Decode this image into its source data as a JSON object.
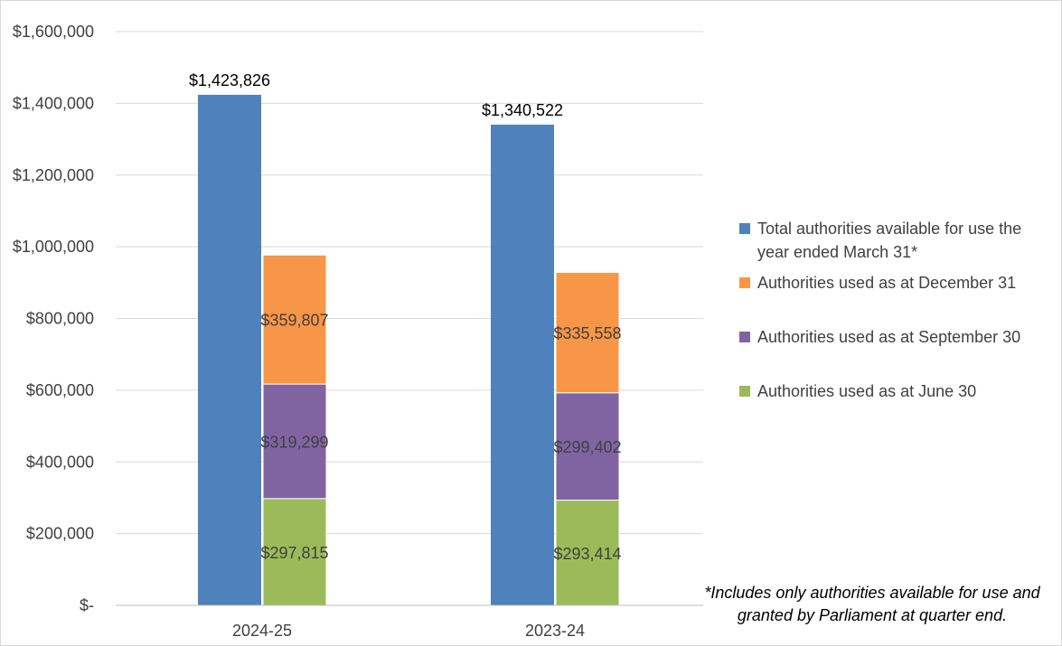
{
  "chart_data": {
    "type": "bar",
    "layout": "grouped-stacked",
    "categories": [
      "2024-25",
      "2023-24"
    ],
    "ylim": [
      0,
      1600000
    ],
    "yticks": [
      0,
      200000,
      400000,
      600000,
      800000,
      1000000,
      1200000,
      1400000,
      1600000
    ],
    "ytick_labels": [
      "$-",
      "$200,000",
      "$400,000",
      "$600,000",
      "$800,000",
      "$1,000,000",
      "$1,200,000",
      "$1,400,000",
      "$1,600,000"
    ],
    "grid": true,
    "legend_position": "right",
    "total_series": {
      "name": "Total authorities available for use the year ended March 31*",
      "color": "#4f81bd",
      "values": [
        1423826,
        1340522
      ],
      "labels": [
        "$1,423,826",
        "$1,340,522"
      ]
    },
    "stacked_series": [
      {
        "name": "Authorities used as at June 30",
        "color": "#9bbb59",
        "values": [
          297815,
          293414
        ],
        "labels": [
          "$297,815",
          "$293,414"
        ]
      },
      {
        "name": "Authorities used as at September 30",
        "color": "#8064a2",
        "values": [
          319299,
          299402
        ],
        "labels": [
          "$319,299",
          "$299,402"
        ]
      },
      {
        "name": "Authorities used as at December 31",
        "color": "#f79646",
        "values": [
          359807,
          335558
        ],
        "labels": [
          "$359,807",
          "$335,558"
        ]
      }
    ],
    "legend": [
      {
        "name": "Total authorities available for use the year ended March 31*",
        "color": "#4f81bd"
      },
      {
        "name": "Authorities used as at December 31",
        "color": "#f79646"
      },
      {
        "name": "Authorities used as at September 30",
        "color": "#8064a2"
      },
      {
        "name": "Authorities used as at June 30",
        "color": "#9bbb59"
      }
    ]
  },
  "footnote": "*Includes only authorities available for use and granted by Parliament at quarter end."
}
